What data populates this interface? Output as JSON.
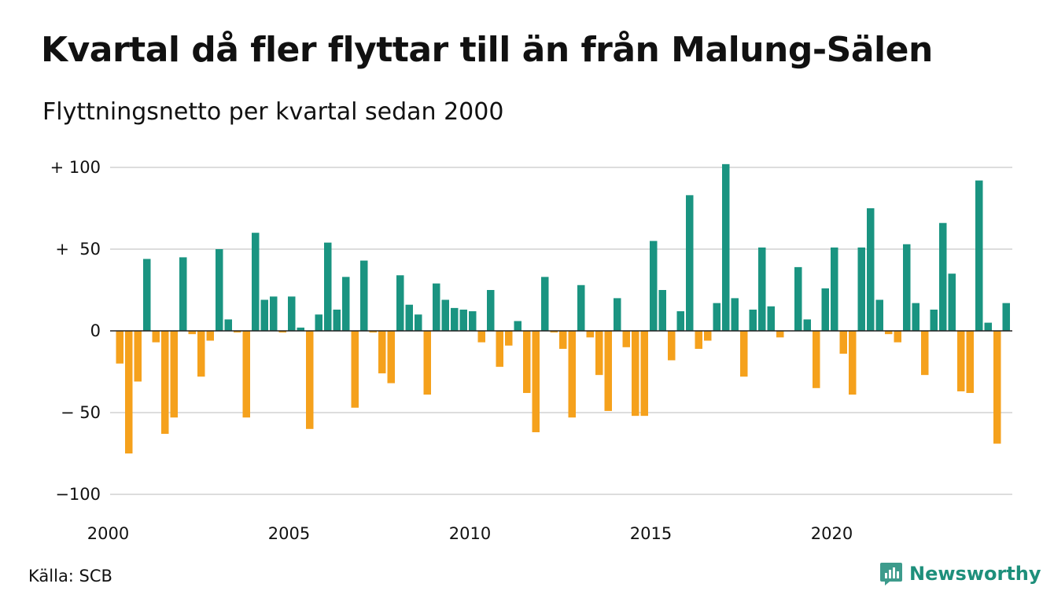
{
  "header": {
    "title": "Kvartal då fler flyttar till än från Malung-Sälen",
    "subtitle": "Flyttningsnetto per kvartal sedan 2000"
  },
  "footer": {
    "source": "Källa: SCB",
    "brand": "Newsworthy"
  },
  "chart_data": {
    "type": "bar",
    "title": "Kvartal då fler flyttar till än från Malung-Sälen",
    "subtitle": "Flyttningsnetto per kvartal sedan 2000",
    "ylim": [
      -105,
      105
    ],
    "grid": true,
    "yticks": [
      {
        "value": 100,
        "label": "+ 100"
      },
      {
        "value": 50,
        "label": "+  50"
      },
      {
        "value": 0,
        "label": "0"
      },
      {
        "value": -50,
        "label": "− 50"
      },
      {
        "value": -100,
        "label": "−100"
      }
    ],
    "xticks": [
      {
        "year": 2000,
        "label": "2000"
      },
      {
        "year": 2005,
        "label": "2005"
      },
      {
        "year": 2010,
        "label": "2010"
      },
      {
        "year": 2015,
        "label": "2015"
      },
      {
        "year": 2020,
        "label": "2020"
      }
    ],
    "colors": {
      "positive": "#1a9481",
      "negative": "#f5a11c",
      "grid": "#dddddd",
      "zero": "#222222"
    },
    "start": {
      "year": 2000,
      "quarter": 1
    },
    "values": [
      -20,
      -75,
      -31,
      44,
      -7,
      -63,
      -53,
      45,
      -2,
      -28,
      -6,
      50,
      7,
      -1,
      -53,
      60,
      19,
      21,
      -1,
      21,
      2,
      -60,
      10,
      54,
      13,
      33,
      -47,
      43,
      -1,
      -26,
      -32,
      34,
      16,
      10,
      -39,
      29,
      19,
      14,
      13,
      12,
      -7,
      25,
      -22,
      -9,
      6,
      -38,
      -62,
      33,
      -1,
      -11,
      -53,
      28,
      -4,
      -27,
      -49,
      20,
      -10,
      -52,
      -52,
      55,
      25,
      -18,
      12,
      83,
      -11,
      -6,
      17,
      102,
      20,
      -28,
      13,
      51,
      15,
      -4,
      0,
      39,
      7,
      -35,
      26,
      51,
      -14,
      -39,
      51,
      75,
      19,
      -2,
      -7,
      53,
      17,
      -27,
      13,
      66,
      35,
      -37,
      -38,
      92,
      5,
      -69,
      17
    ]
  }
}
